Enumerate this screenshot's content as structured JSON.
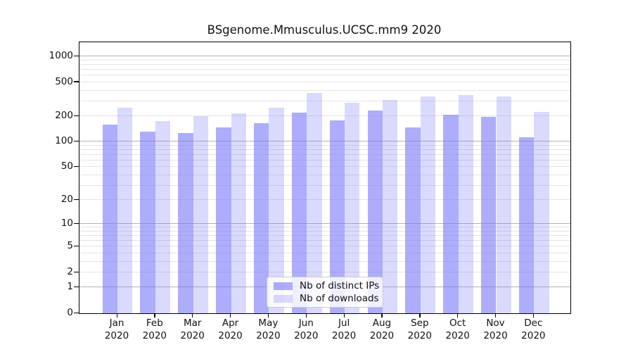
{
  "chart_data": {
    "type": "bar",
    "title": "BSgenome.Mmusculus.UCSC.mm9 2020",
    "categories": [
      "Jan",
      "Feb",
      "Mar",
      "Apr",
      "May",
      "Jun",
      "Jul",
      "Aug",
      "Sep",
      "Oct",
      "Nov",
      "Dec"
    ],
    "category_year": "2020",
    "series": [
      {
        "name": "Nb of distinct IPs",
        "color": "rgba(123,123,250,0.62)",
        "values": [
          160,
          132,
          126,
          149,
          164,
          220,
          178,
          233,
          147,
          208,
          198,
          112
        ]
      },
      {
        "name": "Nb of downloads",
        "color": "rgba(123,123,250,0.28)",
        "values": [
          250,
          176,
          200,
          218,
          252,
          372,
          290,
          311,
          340,
          352,
          341,
          226
        ]
      }
    ],
    "yticks": [
      0,
      1,
      2,
      5,
      10,
      20,
      50,
      100,
      200,
      500,
      1000
    ],
    "major_gridlines": [
      1,
      10,
      100,
      1000
    ],
    "minor_gridlines": [
      2,
      3,
      4,
      5,
      6,
      7,
      8,
      9,
      20,
      30,
      40,
      50,
      60,
      70,
      80,
      90,
      200,
      300,
      400,
      500,
      600,
      700,
      800,
      900
    ],
    "scale": "log10(1+y)",
    "ylim": [
      0,
      1470
    ],
    "grid": true,
    "xlabel": "",
    "ylabel": "",
    "legend_position": "inside lower-center",
    "colors": {
      "grid_major": "#b3b3b3",
      "grid_minor": "#e4e4e4",
      "axis_frame": "#000000",
      "legend_border": "#cccccc"
    }
  }
}
